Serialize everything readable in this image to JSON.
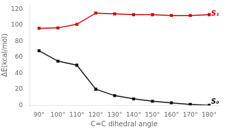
{
  "chart_data": {
    "type": "line",
    "xlabel": "C=C dihedral angle",
    "ylabel": "ΔE(kcal/mol)",
    "x": [
      90,
      100,
      110,
      120,
      130,
      140,
      150,
      160,
      170,
      180
    ],
    "series": [
      {
        "name": "S₁",
        "color": "#cc0000",
        "marker": "square",
        "line_style": "solid",
        "values": [
          96,
          96.5,
          101,
          115,
          114,
          113,
          113,
          112,
          112,
          113
        ]
      },
      {
        "name": "S₀",
        "color": "#111111",
        "marker": "square",
        "line_style": "solid",
        "values": [
          68,
          55,
          50,
          20,
          12,
          8,
          5,
          3,
          1,
          0
        ]
      }
    ],
    "annotations": [
      {
        "text": "S₁",
        "x": 181,
        "y": 114,
        "color": "#cc0000"
      },
      {
        "text": "S₀",
        "x": 181,
        "y": 4,
        "color": "#111111"
      }
    ],
    "xlim": [
      85,
      185
    ],
    "xticks": [
      {
        "value": 90,
        "label": "90°"
      },
      {
        "value": 100,
        "label": "100°"
      },
      {
        "value": 110,
        "label": "110°"
      },
      {
        "value": 120,
        "label": "120°"
      },
      {
        "value": 130,
        "label": "130°"
      },
      {
        "value": 140,
        "label": "140°"
      },
      {
        "value": 150,
        "label": "150°"
      },
      {
        "value": 160,
        "label": "160°"
      },
      {
        "value": 170,
        "label": "170°"
      },
      {
        "value": 180,
        "label": "180°"
      }
    ],
    "ylim": [
      0,
      125
    ],
    "yticks": [
      0,
      20,
      40,
      60,
      80,
      100,
      120
    ],
    "grid": false
  }
}
